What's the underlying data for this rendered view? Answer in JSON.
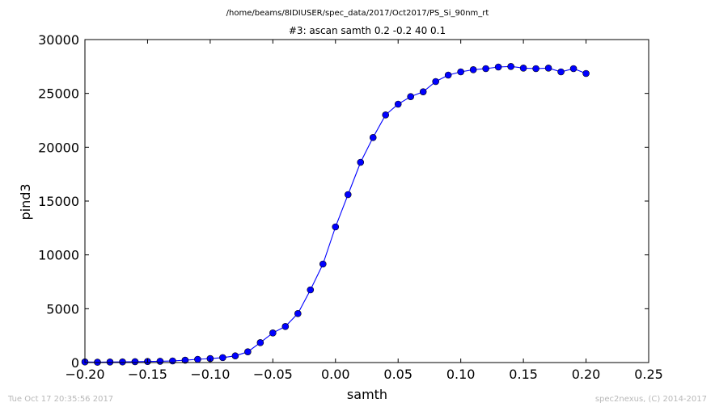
{
  "chart_data": {
    "type": "line",
    "suptitle": "/home/beams/8IDIUSER/spec_data/2017/Oct2017/PS_Si_90nm_rt",
    "title": "#3: ascan  samth 0.2 -0.2  40 0.1",
    "xlabel": "samth",
    "ylabel": "pind3",
    "xlim": [
      -0.2,
      0.25
    ],
    "ylim": [
      0,
      30000
    ],
    "xticks": [
      "−0.20",
      "−0.15",
      "−0.10",
      "−0.05",
      "0.00",
      "0.05",
      "0.10",
      "0.15",
      "0.20",
      "0.25"
    ],
    "xtick_values": [
      -0.2,
      -0.15,
      -0.1,
      -0.05,
      0.0,
      0.05,
      0.1,
      0.15,
      0.2,
      0.25
    ],
    "yticks": [
      "0",
      "5000",
      "10000",
      "15000",
      "20000",
      "25000",
      "30000"
    ],
    "ytick_values": [
      0,
      5000,
      10000,
      15000,
      20000,
      25000,
      30000
    ],
    "grid": false,
    "series": [
      {
        "color": "#0000ff",
        "marker": "circle",
        "x": [
          -0.2,
          -0.19,
          -0.18,
          -0.17,
          -0.16,
          -0.15,
          -0.14,
          -0.13,
          -0.12,
          -0.11,
          -0.1,
          -0.09,
          -0.08,
          -0.07,
          -0.06,
          -0.05,
          -0.04,
          -0.03,
          -0.02,
          -0.01,
          0.0,
          0.01,
          0.02,
          0.03,
          0.04,
          0.05,
          0.06,
          0.07,
          0.08,
          0.09,
          0.1,
          0.11,
          0.12,
          0.13,
          0.14,
          0.15,
          0.16,
          0.17,
          0.18,
          0.19,
          0.2
        ],
        "y": [
          60,
          30,
          50,
          60,
          80,
          100,
          120,
          150,
          220,
          300,
          370,
          460,
          620,
          1000,
          1850,
          2750,
          3350,
          4550,
          6750,
          9150,
          12600,
          15600,
          18600,
          20900,
          23000,
          24000,
          24700,
          25150,
          26100,
          26700,
          27000,
          27200,
          27300,
          27450,
          27500,
          27350,
          27300,
          27350,
          27000,
          27300,
          26850
        ]
      }
    ]
  },
  "footer": {
    "timestamp": "Tue Oct 17 20:35:56 2017",
    "credit": "spec2nexus, (C) 2014-2017"
  }
}
